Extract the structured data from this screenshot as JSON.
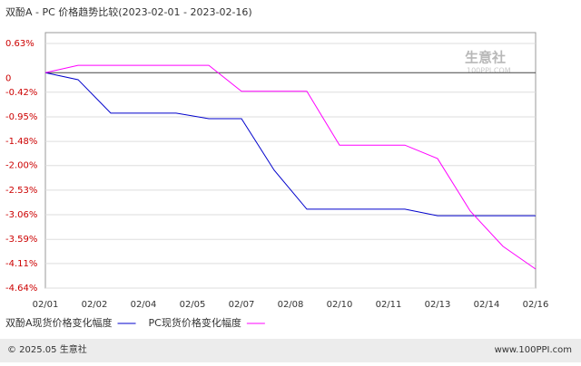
{
  "chart_data": {
    "type": "line",
    "title": "双酚A - PC 价格趋势比较(2023-02-01 - 2023-02-16)",
    "watermark": "生意社",
    "watermark_url": "100PPI.COM",
    "xticks": [
      "02/01",
      "02/02",
      "02/04",
      "02/05",
      "02/07",
      "02/08",
      "02/10",
      "02/11",
      "02/13",
      "02/14",
      "02/16"
    ],
    "series": [
      {
        "name": "双酚A现货价格变化幅度",
        "color": "#0000cc",
        "values": [
          0,
          -0.15,
          -0.87,
          -0.87,
          -0.87,
          -0.99,
          -0.99,
          -2.1,
          -2.94,
          -2.94,
          -2.94,
          -2.94,
          -3.08,
          -3.08,
          -3.08,
          -3.08
        ]
      },
      {
        "name": "PC现货价格变化幅度",
        "color": "#ff00ff",
        "values": [
          0,
          0.16,
          0.16,
          0.16,
          0.16,
          0.16,
          -0.4,
          -0.4,
          -0.4,
          -1.56,
          -1.56,
          -1.56,
          -1.85,
          -2.98,
          -3.74,
          -4.23
        ]
      }
    ],
    "ylim": [
      -4.64,
      0.63
    ],
    "yticks": [
      {
        "value": 0.63,
        "label": "0.63%"
      },
      0,
      {
        "value": -0.42,
        "label": "-0.42%"
      },
      {
        "value": -0.95,
        "label": "-0.95%"
      },
      {
        "value": -1.48,
        "label": "-1.48%"
      },
      {
        "value": -2.0,
        "label": "-2.00%"
      },
      {
        "value": -2.53,
        "label": "-2.53%"
      },
      {
        "value": -3.06,
        "label": "-3.06%"
      },
      {
        "value": -3.59,
        "label": "-3.59%"
      },
      {
        "value": -4.11,
        "label": "-4.11%"
      },
      {
        "value": -4.64,
        "label": "-4.64%"
      }
    ],
    "grid": true,
    "footer_left": "© 2025.05 生意社",
    "footer_right": "www.100PPI.com"
  }
}
